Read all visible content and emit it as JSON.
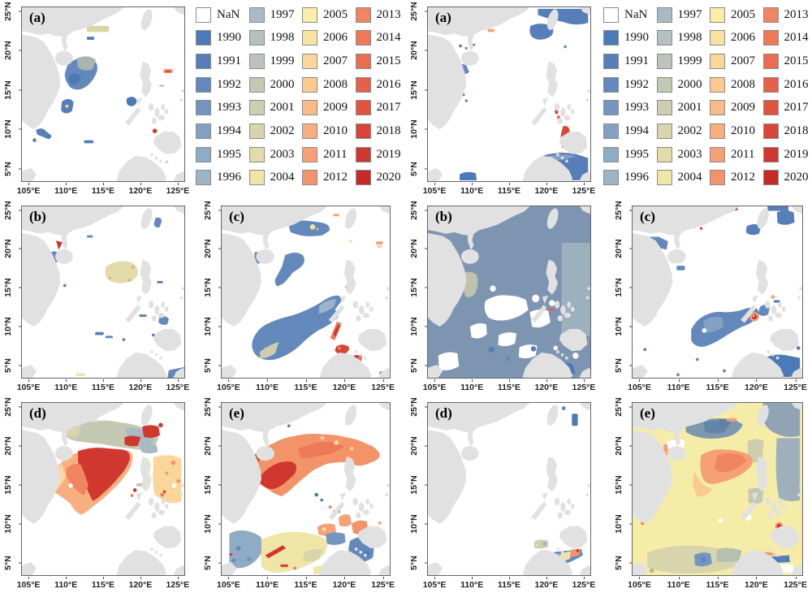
{
  "axes": {
    "x_ticks": [
      "105°E",
      "110°E",
      "115°E",
      "120°E",
      "125°E"
    ],
    "y_ticks": [
      "5°N",
      "10°N",
      "15°N",
      "20°N",
      "25°N"
    ]
  },
  "panels": [
    {
      "label": "(a)"
    },
    {
      "label": "(b)"
    },
    {
      "label": "(c)"
    },
    {
      "label": "(d)"
    },
    {
      "label": "(e)"
    },
    {
      "label": "(a)"
    },
    {
      "label": "(b)"
    },
    {
      "label": "(c)"
    },
    {
      "label": "(d)"
    },
    {
      "label": "(e)"
    }
  ],
  "legend": {
    "items": [
      {
        "label": "NaN",
        "color": "#ffffff"
      },
      {
        "label": "1990",
        "color": "#4a7ab8"
      },
      {
        "label": "1991",
        "color": "#567fb9"
      },
      {
        "label": "1992",
        "color": "#6389bc"
      },
      {
        "label": "1993",
        "color": "#7495bf"
      },
      {
        "label": "1994",
        "color": "#84a1c3"
      },
      {
        "label": "1995",
        "color": "#90abc5"
      },
      {
        "label": "1996",
        "color": "#9db4c6"
      },
      {
        "label": "1997",
        "color": "#a8bac3"
      },
      {
        "label": "1998",
        "color": "#b2c0bf"
      },
      {
        "label": "1999",
        "color": "#bac4ba"
      },
      {
        "label": "2000",
        "color": "#c4c9b4"
      },
      {
        "label": "2001",
        "color": "#cdceb0"
      },
      {
        "label": "2002",
        "color": "#d8d5ac"
      },
      {
        "label": "2003",
        "color": "#e2dcaa"
      },
      {
        "label": "2004",
        "color": "#eee5a7"
      },
      {
        "label": "2005",
        "color": "#f9eda7"
      },
      {
        "label": "2006",
        "color": "#f9e1a1"
      },
      {
        "label": "2007",
        "color": "#fad69b"
      },
      {
        "label": "2008",
        "color": "#faca91"
      },
      {
        "label": "2009",
        "color": "#f9bc88"
      },
      {
        "label": "2010",
        "color": "#f8af7f"
      },
      {
        "label": "2011",
        "color": "#f6a175"
      },
      {
        "label": "2012",
        "color": "#f3936a"
      },
      {
        "label": "2013",
        "color": "#f08661"
      },
      {
        "label": "2014",
        "color": "#ed7959"
      },
      {
        "label": "2015",
        "color": "#e96d51"
      },
      {
        "label": "2016",
        "color": "#e46049"
      },
      {
        "label": "2017",
        "color": "#df5340"
      },
      {
        "label": "2018",
        "color": "#d84638"
      },
      {
        "label": "2019",
        "color": "#d0382f"
      },
      {
        "label": "2020",
        "color": "#c72926"
      }
    ]
  },
  "colors": {
    "land": "#e1e1e1",
    "sea": "#ffffff",
    "frame": "#666666"
  }
}
